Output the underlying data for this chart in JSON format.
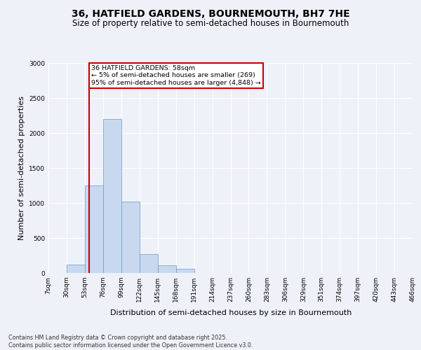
{
  "title_line1": "36, HATFIELD GARDENS, BOURNEMOUTH, BH7 7HE",
  "title_line2": "Size of property relative to semi-detached houses in Bournemouth",
  "xlabel": "Distribution of semi-detached houses by size in Bournemouth",
  "ylabel": "Number of semi-detached properties",
  "bin_labels": [
    "7sqm",
    "30sqm",
    "53sqm",
    "76sqm",
    "99sqm",
    "122sqm",
    "145sqm",
    "168sqm",
    "191sqm",
    "214sqm",
    "237sqm",
    "260sqm",
    "283sqm",
    "306sqm",
    "329sqm",
    "351sqm",
    "374sqm",
    "397sqm",
    "420sqm",
    "443sqm",
    "466sqm"
  ],
  "bar_heights": [
    0,
    120,
    1250,
    2200,
    1020,
    275,
    110,
    60,
    0,
    0,
    0,
    0,
    0,
    0,
    0,
    0,
    0,
    0,
    0,
    0
  ],
  "bar_color": "#c8d9ef",
  "bar_edge_color": "#6699cc",
  "property_sqm": 58,
  "annotation_text": "36 HATFIELD GARDENS: 58sqm\n← 5% of semi-detached houses are smaller (269)\n95% of semi-detached houses are larger (4,848) →",
  "annotation_box_color": "#ffffff",
  "annotation_box_edge": "#cc0000",
  "vline_color": "#cc0000",
  "ylim": [
    0,
    3000
  ],
  "yticks": [
    0,
    500,
    1000,
    1500,
    2000,
    2500,
    3000
  ],
  "footer_text": "Contains HM Land Registry data © Crown copyright and database right 2025.\nContains public sector information licensed under the Open Government Licence v3.0.",
  "background_color": "#eef2f8",
  "plot_background": "#eef2f8",
  "grid_color": "#ffffff",
  "title_fontsize": 10,
  "subtitle_fontsize": 8.5,
  "tick_fontsize": 6.5,
  "label_fontsize": 8,
  "footer_fontsize": 5.8
}
